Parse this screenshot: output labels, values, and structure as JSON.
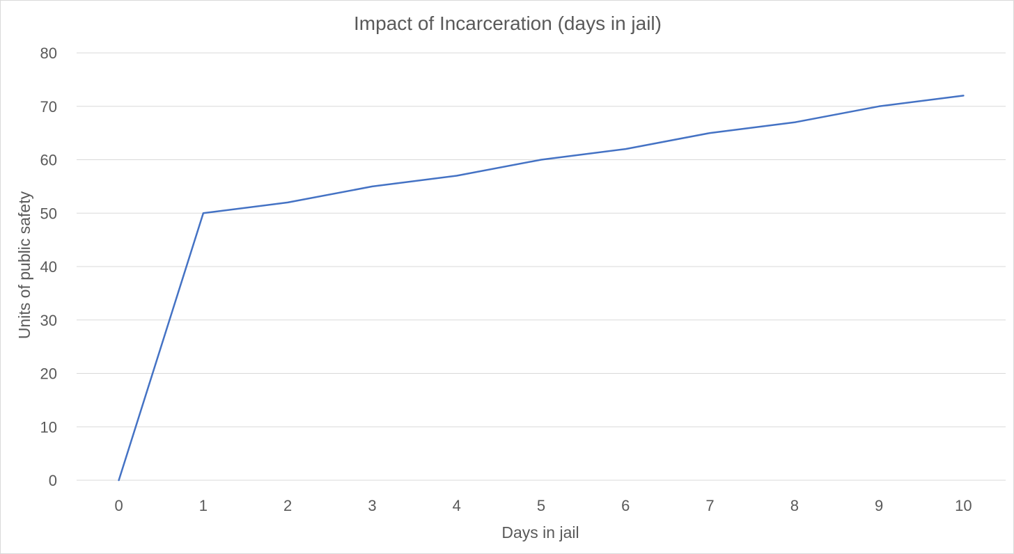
{
  "chart_data": {
    "type": "line",
    "title": "Impact of Incarceration (days in jail)",
    "xlabel": "Days in jail",
    "ylabel": "Units of public safety",
    "x": [
      0,
      1,
      2,
      3,
      4,
      5,
      6,
      7,
      8,
      9,
      10
    ],
    "series": [
      {
        "values": [
          0,
          50,
          52,
          55,
          57,
          60,
          62,
          65,
          67,
          70,
          72
        ],
        "color": "#4472c4"
      }
    ],
    "ylim": [
      0,
      80
    ],
    "yticks": [
      0,
      10,
      20,
      30,
      40,
      50,
      60,
      70,
      80
    ],
    "grid": true,
    "legend": "none"
  }
}
